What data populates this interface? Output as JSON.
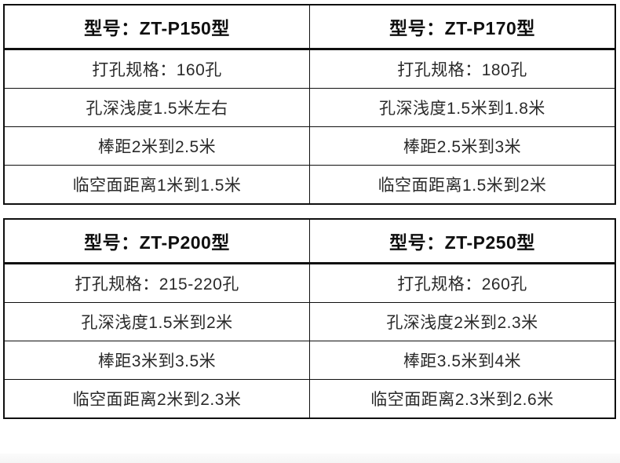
{
  "colors": {
    "border": "#0f0f0f",
    "header_text": "#0f0f0f",
    "body_text": "#2a2a2a",
    "bottom_band": "#f7f7f7",
    "background": "#ffffff"
  },
  "tables": [
    {
      "columns": [
        {
          "header": "型号：ZT-P150型",
          "rows": [
            "打孔规格：160孔",
            "孔深浅度1.5米左右",
            "棒距2米到2.5米",
            "临空面距离1米到1.5米"
          ]
        },
        {
          "header": "型号：ZT-P170型",
          "rows": [
            "打孔规格：180孔",
            "孔深浅度1.5米到1.8米",
            "棒距2.5米到3米",
            "临空面距离1.5米到2米"
          ]
        }
      ]
    },
    {
      "columns": [
        {
          "header": "型号：ZT-P200型",
          "rows": [
            "打孔规格：215-220孔",
            "孔深浅度1.5米到2米",
            "棒距3米到3.5米",
            "临空面距离2米到2.3米"
          ]
        },
        {
          "header": "型号：ZT-P250型",
          "rows": [
            "打孔规格：260孔",
            "孔深浅度2米到2.3米",
            "棒距3.5米到4米",
            "临空面距离2.3米到2.6米"
          ]
        }
      ]
    }
  ]
}
